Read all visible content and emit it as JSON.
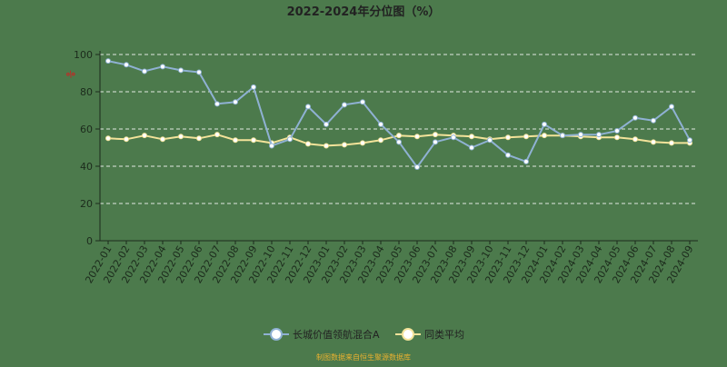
{
  "chart_data": {
    "type": "line",
    "title": "2022-2024年分位图（%）",
    "y_unit": "%",
    "ylim": [
      0,
      100
    ],
    "y_ticks": [
      0,
      20,
      40,
      60,
      80,
      100
    ],
    "grid": true,
    "legend_position": "bottom",
    "categories": [
      "2022-01",
      "2022-02",
      "2022-03",
      "2022-04",
      "2022-05",
      "2022-06",
      "2022-07",
      "2022-08",
      "2022-09",
      "2022-10",
      "2022-11",
      "2022-12",
      "2023-01",
      "2023-02",
      "2023-03",
      "2023-04",
      "2023-05",
      "2023-06",
      "2023-07",
      "2023-08",
      "2023-09",
      "2023-10",
      "2023-11",
      "2023-12",
      "2024-01",
      "2024-02",
      "2024-03",
      "2024-04",
      "2024-05",
      "2024-06",
      "2024-07",
      "2024-08",
      "2024-09"
    ],
    "series": [
      {
        "name": "长城价值领航混合A",
        "color": "#8fb1d3",
        "values": [
          96.5,
          94.5,
          91,
          93.5,
          91.5,
          90.5,
          73.5,
          74.5,
          82.5,
          51,
          54.5,
          72,
          62.5,
          73,
          74.5,
          62.5,
          53,
          39.5,
          53,
          55.5,
          50,
          54,
          46,
          42.5,
          62.5,
          56.5,
          57,
          57,
          59,
          66,
          64.5,
          72,
          54
        ]
      },
      {
        "name": "同类平均",
        "color": "#f3e39a",
        "values": [
          55,
          54.5,
          56.5,
          54.5,
          56,
          55,
          57,
          54,
          54,
          52.5,
          55.5,
          52,
          51,
          51.5,
          52.5,
          54,
          56.5,
          56,
          57,
          56.5,
          56,
          54.5,
          55.5,
          56,
          56.5,
          56.5,
          56,
          55.5,
          55.5,
          54.5,
          53,
          52.5,
          52.5
        ]
      }
    ]
  },
  "footer": "制图数据来自恒生聚源数据库",
  "colors": {
    "background": "#4c7a4c",
    "axis": "#1c2b1c",
    "grid": "#dfe8df",
    "title": "#222222",
    "unit_mark": "#cc2222",
    "footer": "#e8b030"
  }
}
